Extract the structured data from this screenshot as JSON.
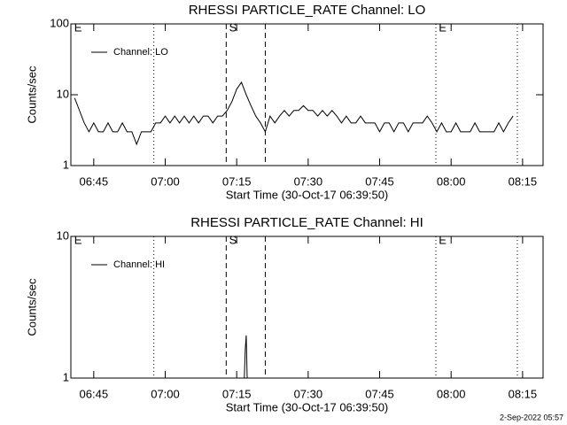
{
  "chart_data": [
    {
      "type": "line",
      "title": "RHESSI PARTICLE_RATE Channel: LO",
      "xlabel": "Start Time (30-Oct-17 06:39:50)",
      "ylabel": "Counts/sec",
      "log_y": true,
      "legend": "upper left",
      "xlim": [
        400.2,
        499.3
      ],
      "ylim": [
        1,
        100
      ],
      "yticks": [
        1,
        10,
        100
      ],
      "xticks": [
        {
          "value": 405,
          "label": "06:45"
        },
        {
          "value": 420,
          "label": "07:00"
        },
        {
          "value": 435,
          "label": "07:15"
        },
        {
          "value": 450,
          "label": "07:30"
        },
        {
          "value": 465,
          "label": "07:45"
        },
        {
          "value": 480,
          "label": "08:00"
        },
        {
          "value": 495,
          "label": "08:15"
        }
      ],
      "x": [
        401,
        402,
        403,
        404,
        405,
        406,
        407,
        408,
        409,
        410,
        411,
        412,
        413,
        414,
        415,
        416,
        417,
        418,
        419,
        420,
        421,
        422,
        423,
        424,
        425,
        426,
        427,
        428,
        429,
        430,
        431,
        432,
        433,
        434,
        435,
        436,
        437,
        438,
        439,
        440,
        441,
        442,
        443,
        444,
        445,
        446,
        447,
        448,
        449,
        450,
        451,
        452,
        453,
        454,
        455,
        456,
        457,
        458,
        459,
        460,
        461,
        462,
        463,
        464,
        465,
        466,
        467,
        468,
        469,
        470,
        471,
        472,
        473,
        474,
        475,
        476,
        477,
        478,
        479,
        480,
        481,
        482,
        483,
        484,
        485,
        486,
        487,
        488,
        489,
        490,
        491,
        492,
        493
      ],
      "series": [
        {
          "name": "Channel: LO",
          "color": "#000000",
          "values": [
            9,
            6,
            4,
            3,
            4,
            3,
            3,
            4,
            3,
            3,
            4,
            3,
            3,
            2,
            3,
            3,
            3,
            4,
            4,
            5,
            4,
            5,
            4,
            5,
            4,
            5,
            4,
            5,
            5,
            4,
            5,
            5,
            6,
            8,
            12,
            15,
            10,
            7,
            5,
            4,
            3,
            5,
            4,
            5,
            6,
            5,
            6,
            6,
            7,
            6,
            6,
            5,
            6,
            5,
            6,
            5,
            4,
            5,
            4,
            4,
            5,
            4,
            4,
            4,
            3,
            4,
            4,
            3,
            4,
            4,
            3,
            4,
            4,
            4,
            5,
            4,
            3,
            4,
            3,
            3,
            4,
            3,
            3,
            3,
            4,
            3,
            3,
            3,
            3,
            4,
            3,
            4,
            5
          ]
        }
      ],
      "vlines": [
        {
          "x": 417.6,
          "style": "dotted"
        },
        {
          "x": 432.8,
          "style": "dashed"
        },
        {
          "x": 441.0,
          "style": "dashed"
        },
        {
          "x": 476.8,
          "style": "dotted"
        },
        {
          "x": 493.9,
          "style": "dotted"
        }
      ],
      "flags": [
        {
          "x": 400.9,
          "label": "E"
        },
        {
          "x": 433.4,
          "label": "S"
        },
        {
          "x": 477.4,
          "label": "E"
        }
      ]
    },
    {
      "type": "line",
      "title": "RHESSI PARTICLE_RATE Channel: HI",
      "xlabel": "Start Time (30-Oct-17 06:39:50)",
      "ylabel": "Counts/sec",
      "log_y": true,
      "legend": "upper left",
      "xlim": [
        400.2,
        499.3
      ],
      "ylim": [
        1,
        10
      ],
      "yticks": [
        1,
        10
      ],
      "xticks": [
        {
          "value": 405,
          "label": "06:45"
        },
        {
          "value": 420,
          "label": "07:00"
        },
        {
          "value": 435,
          "label": "07:15"
        },
        {
          "value": 450,
          "label": "07:30"
        },
        {
          "value": 465,
          "label": "07:45"
        },
        {
          "value": 480,
          "label": "08:00"
        },
        {
          "value": 495,
          "label": "08:15"
        }
      ],
      "x": [
        436.6,
        436.8,
        437.0,
        437.2
      ],
      "series": [
        {
          "name": "Channel: HI",
          "color": "#000000",
          "values": [
            1,
            1.6,
            2,
            1
          ]
        }
      ],
      "vlines": [
        {
          "x": 417.6,
          "style": "dotted"
        },
        {
          "x": 432.8,
          "style": "dashed"
        },
        {
          "x": 441.0,
          "style": "dashed"
        },
        {
          "x": 476.8,
          "style": "dotted"
        },
        {
          "x": 493.9,
          "style": "dotted"
        }
      ],
      "flags": [
        {
          "x": 400.9,
          "label": "E"
        },
        {
          "x": 433.4,
          "label": "S"
        },
        {
          "x": 477.4,
          "label": "E"
        }
      ]
    }
  ],
  "footer": "2-Sep-2022 05:57"
}
